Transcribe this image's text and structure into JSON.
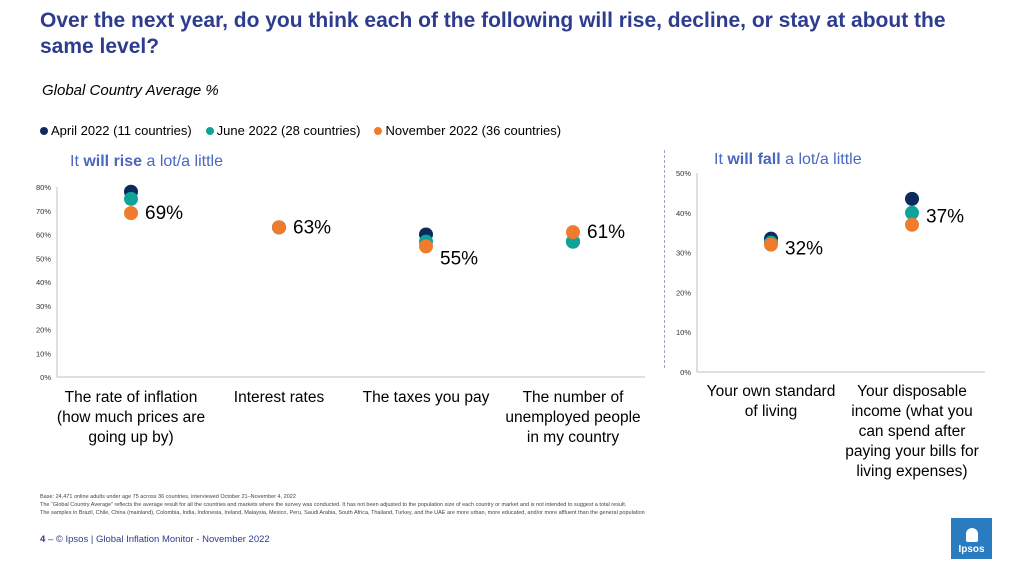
{
  "title": "Over the next year, do you think each of the following will rise, decline, or stay at about the same level?",
  "subtitle": "Global Country Average %",
  "legend": [
    {
      "label": "April 2022 (11 countries)",
      "color": "#0d2a5c"
    },
    {
      "label": "June 2022 (28 countries)",
      "color": "#0fa39a"
    },
    {
      "label": "November 2022 (36 countries)",
      "color": "#ef7c2c"
    }
  ],
  "left_panel": {
    "prefix": "It ",
    "bold": "will rise",
    "suffix": " a lot/a little"
  },
  "right_panel": {
    "prefix": "It ",
    "bold": "will fall",
    "suffix": " a lot/a little"
  },
  "chart_data": [
    {
      "type": "scatter",
      "title": "It will rise a lot/a little",
      "categories": [
        "The rate of inflation (how much prices are going up by)",
        "Interest rates",
        "The taxes you pay",
        "The number of unemployed people in my country"
      ],
      "series": [
        {
          "name": "April 2022 (11 countries)",
          "values": [
            78,
            63,
            60,
            57
          ]
        },
        {
          "name": "June 2022 (28 countries)",
          "values": [
            75,
            63,
            57,
            57
          ]
        },
        {
          "name": "November 2022 (36 countries)",
          "values": [
            69,
            63,
            55,
            61
          ]
        }
      ],
      "data_labels": [
        "69%",
        "63%",
        "55%",
        "61%"
      ],
      "ylim": [
        0,
        80
      ],
      "yticks": [
        "0%",
        "10%",
        "20%",
        "30%",
        "40%",
        "50%",
        "60%",
        "70%",
        "80%"
      ]
    },
    {
      "type": "scatter",
      "title": "It will fall a lot/a little",
      "categories": [
        "Your own standard of living",
        "Your disposable income (what you can spend after paying your bills for living expenses)"
      ],
      "series": [
        {
          "name": "April 2022 (11 countries)",
          "values": [
            33.5,
            43.5
          ]
        },
        {
          "name": "June 2022 (28 countries)",
          "values": [
            32.5,
            40
          ]
        },
        {
          "name": "November 2022 (36 countries)",
          "values": [
            32,
            37
          ]
        }
      ],
      "data_labels": [
        "32%",
        "37%"
      ],
      "ylim": [
        0,
        50
      ],
      "yticks": [
        "0%",
        "10%",
        "20%",
        "30%",
        "40%",
        "50%"
      ]
    }
  ],
  "footnotes": [
    "Base: 24,471 online adults under age 75 across 36 countries, interviewed October 21–November 4, 2022",
    "The “Global Country Average” reflects the average result for all the countries and markets where the survey was conducted. It has not been adjusted to the population size of each country or market and is not intended to suggest a total result.",
    "The samples in Brazil, Chile, China (mainland), Colombia, India, Indonesia, Ireland, Malaysia, Mexico, Peru, Saudi Arabia, South Africa, Thailand, Turkey, and the UAE are more urban, more educated, and/or more affluent than the general population"
  ],
  "footer": {
    "page": "4",
    "text": "© Ipsos | Global Inflation Monitor - November 2022"
  },
  "logo": {
    "text": "Ipsos"
  }
}
